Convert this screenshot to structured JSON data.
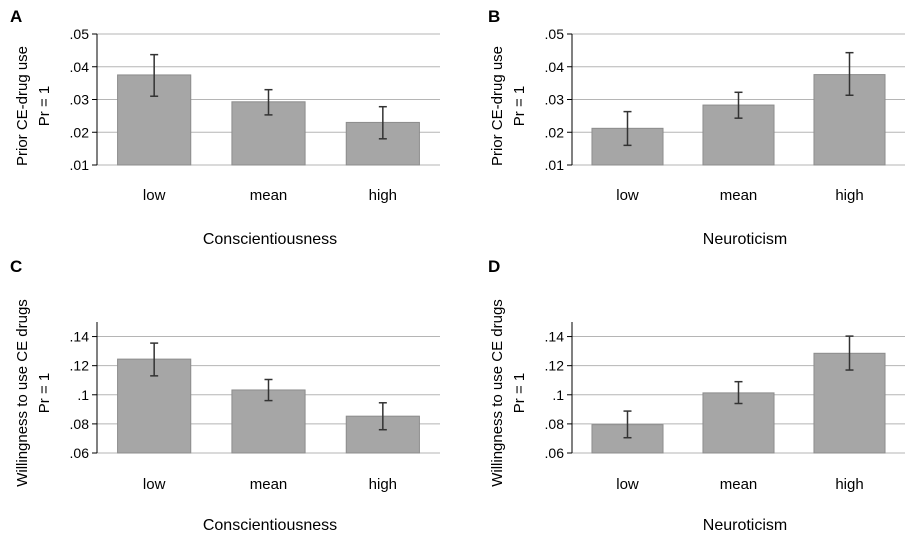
{
  "chart_data": [
    {
      "panel_label": "A",
      "type": "bar",
      "categories": [
        "low",
        "mean",
        "high"
      ],
      "values": [
        0.0375,
        0.0293,
        0.023
      ],
      "error_low": [
        0.031,
        0.0253,
        0.018
      ],
      "error_high": [
        0.0437,
        0.033,
        0.0278
      ],
      "ylabel_lines": [
        "Prior CE-drug use",
        "Pr = 1"
      ],
      "xlabel": "Conscientiousness",
      "ylim": [
        0.01,
        0.05
      ],
      "yticks": [
        0.01,
        0.02,
        0.03,
        0.04,
        0.05
      ],
      "ytick_labels": [
        ".01",
        ".02",
        ".03",
        ".04",
        ".05"
      ],
      "grid": true,
      "bar_color": "#a6a6a6",
      "bar_edge_color": "#8c8c8c"
    },
    {
      "panel_label": "B",
      "type": "bar",
      "categories": [
        "low",
        "mean",
        "high"
      ],
      "values": [
        0.0212,
        0.0283,
        0.0376
      ],
      "error_low": [
        0.016,
        0.0243,
        0.0313
      ],
      "error_high": [
        0.0263,
        0.0322,
        0.0443
      ],
      "ylabel_lines": [
        "Prior CE-drug use",
        "Pr = 1"
      ],
      "xlabel": "Neuroticism",
      "ylim": [
        0.01,
        0.05
      ],
      "yticks": [
        0.01,
        0.02,
        0.03,
        0.04,
        0.05
      ],
      "ytick_labels": [
        ".01",
        ".02",
        ".03",
        ".04",
        ".05"
      ],
      "grid": true,
      "bar_color": "#a6a6a6",
      "bar_edge_color": "#8c8c8c"
    },
    {
      "panel_label": "C",
      "type": "bar",
      "categories": [
        "low",
        "mean",
        "high"
      ],
      "values": [
        0.1245,
        0.1033,
        0.0853
      ],
      "error_low": [
        0.113,
        0.096,
        0.076
      ],
      "error_high": [
        0.1355,
        0.1105,
        0.0945
      ],
      "ylabel_lines": [
        "Willingness to use CE drugs",
        "Pr = 1"
      ],
      "xlabel": "Conscientiousness",
      "ylim": [
        0.06,
        0.15
      ],
      "yticks": [
        0.06,
        0.08,
        0.1,
        0.12,
        0.14
      ],
      "ytick_labels": [
        ".06",
        ".08",
        ".1",
        ".12",
        ".14"
      ],
      "grid": true,
      "bar_color": "#a6a6a6",
      "bar_edge_color": "#8c8c8c"
    },
    {
      "panel_label": "D",
      "type": "bar",
      "categories": [
        "low",
        "mean",
        "high"
      ],
      "values": [
        0.0795,
        0.1013,
        0.1285
      ],
      "error_low": [
        0.0705,
        0.094,
        0.117
      ],
      "error_high": [
        0.0888,
        0.109,
        0.1403
      ],
      "ylabel_lines": [
        "Willingness to use CE drugs",
        "Pr = 1"
      ],
      "xlabel": "Neuroticism",
      "ylim": [
        0.06,
        0.15
      ],
      "yticks": [
        0.06,
        0.08,
        0.1,
        0.12,
        0.14
      ],
      "ytick_labels": [
        ".06",
        ".08",
        ".1",
        ".12",
        ".14"
      ],
      "grid": true,
      "bar_color": "#a6a6a6",
      "bar_edge_color": "#8c8c8c"
    }
  ]
}
